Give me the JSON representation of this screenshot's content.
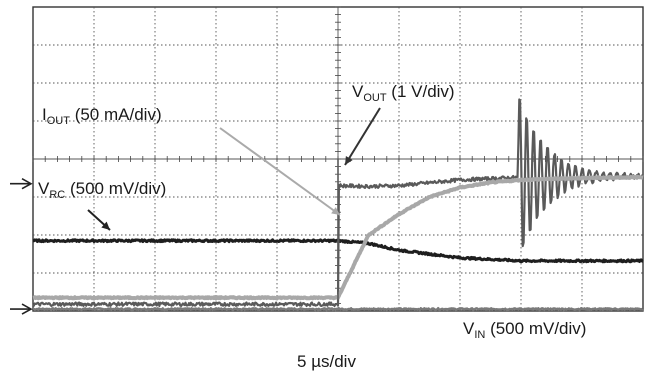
{
  "chart_data": {
    "type": "line",
    "xlabel": "5 µs/div",
    "divisions": {
      "horizontal": 10,
      "vertical": 8
    },
    "x_unit": "div",
    "y_unit": "div",
    "xlim": [
      0,
      10
    ],
    "ylim": [
      0,
      8
    ],
    "series": [
      {
        "name": "VOUT (1 V/div)",
        "label": {
          "main": "V",
          "sub": "OUT",
          "rest": " (1 V/div)"
        },
        "color": "#5a5a5a",
        "points": [
          [
            0,
            0.18
          ],
          [
            5.0,
            0.18
          ],
          [
            5.0,
            3.3
          ],
          [
            5.5,
            3.28
          ],
          [
            6.0,
            3.3
          ],
          [
            7.0,
            3.45
          ],
          [
            8.0,
            3.52
          ],
          [
            10,
            3.55
          ]
        ],
        "annotation": "ringing starting near 8.0 div, peak about 5.9 div, trough about 1.4 div"
      },
      {
        "name": "IOUT (50 mA/div)",
        "label": {
          "main": "I",
          "sub": "OUT",
          "rest": " (50 mA/div)"
        },
        "color": "#a8a8a8",
        "points": [
          [
            0,
            0.35
          ],
          [
            5.0,
            0.35
          ],
          [
            5.5,
            2.0
          ],
          [
            6.0,
            2.55
          ],
          [
            6.5,
            3.0
          ],
          [
            7.0,
            3.25
          ],
          [
            7.5,
            3.38
          ],
          [
            8.0,
            3.45
          ],
          [
            9.0,
            3.5
          ],
          [
            10,
            3.52
          ]
        ]
      },
      {
        "name": "VRC (500 mV/div)",
        "label": {
          "main": "V",
          "sub": "RC",
          "rest": " (500 mV/div)"
        },
        "color": "#1e1e1e",
        "points": [
          [
            0,
            1.85
          ],
          [
            5.0,
            1.85
          ],
          [
            5.5,
            1.78
          ],
          [
            6.0,
            1.6
          ],
          [
            7.0,
            1.4
          ],
          [
            8.0,
            1.32
          ],
          [
            10,
            1.32
          ]
        ]
      },
      {
        "name": "VIN (500 mV/div)",
        "label": {
          "main": "V",
          "sub": "IN",
          "rest": " (500 mV/div)"
        },
        "color": "#7a7a7a",
        "points": [
          [
            0,
            0.05
          ],
          [
            10,
            0.05
          ]
        ]
      }
    ],
    "channel_markers": [
      "arrow-level-1",
      "arrow-level-2"
    ],
    "grid": true
  }
}
